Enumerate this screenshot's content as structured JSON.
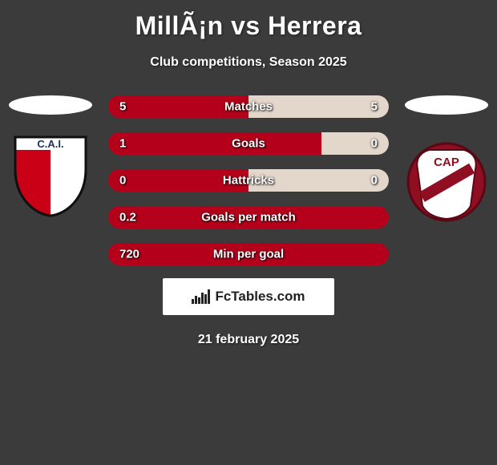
{
  "header": {
    "title": "MillÃ¡n vs Herrera",
    "subtitle": "Club competitions, Season 2025"
  },
  "colors": {
    "left_fill": "#b5001b",
    "right_fill": "#e3d6cb",
    "background": "#3b3b3b"
  },
  "stats": [
    {
      "label": "Matches",
      "left_value": "5",
      "right_value": "5",
      "left_pct": 50,
      "right_pct": 50
    },
    {
      "label": "Goals",
      "left_value": "1",
      "right_value": "0",
      "left_pct": 76,
      "right_pct": 24
    },
    {
      "label": "Hattricks",
      "left_value": "0",
      "right_value": "0",
      "left_pct": 50,
      "right_pct": 50
    },
    {
      "label": "Goals per match",
      "left_value": "0.2",
      "right_value": "",
      "left_pct": 100,
      "right_pct": 0
    },
    {
      "label": "Min per goal",
      "left_value": "720",
      "right_value": "",
      "left_pct": 100,
      "right_pct": 0
    }
  ],
  "teams": {
    "left": {
      "crest_bg": "#ffffff",
      "crest_accent": "#c90016",
      "crest_text": "C.A.I.",
      "crest_text_color": "#19325f"
    },
    "right": {
      "crest_bg": "#ffffff",
      "crest_accent": "#8f0e22",
      "crest_text": "CAP",
      "crest_text_color": "#ffffff"
    }
  },
  "branding": {
    "text": "FcTables.com"
  },
  "date": "21 february 2025"
}
